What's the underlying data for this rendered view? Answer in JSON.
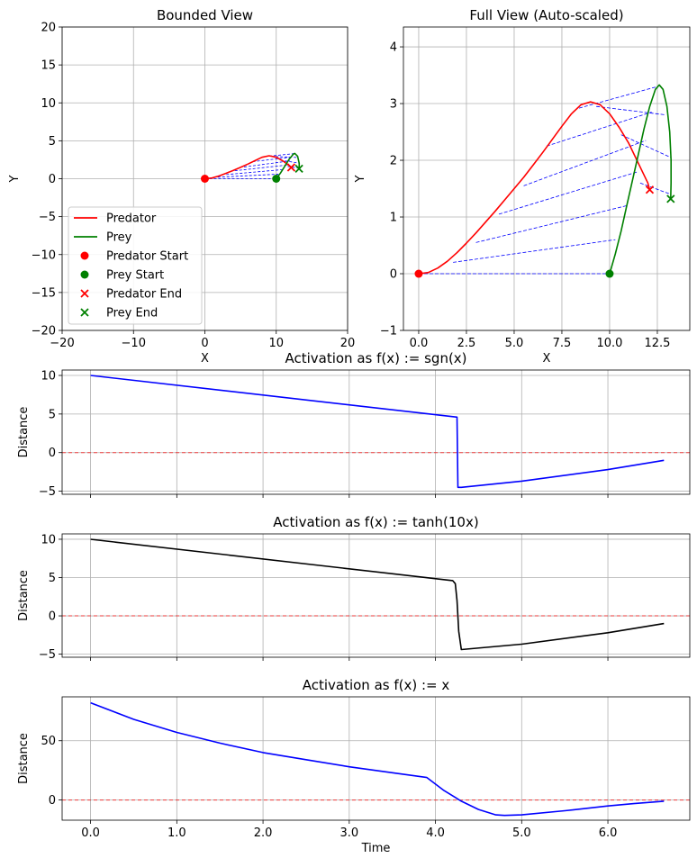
{
  "chart_data": [
    {
      "id": "bounded",
      "type": "line",
      "title": "Bounded View",
      "xlabel": "X",
      "ylabel": "Y",
      "xlim": [
        -20,
        20
      ],
      "ylim": [
        -20,
        20
      ],
      "xticks": [
        -20,
        -10,
        0,
        10,
        20
      ],
      "yticks": [
        -20,
        -15,
        -10,
        -5,
        0,
        5,
        10,
        15,
        20
      ],
      "grid": true,
      "legend_position": "lower-left",
      "legend": [
        "Predator",
        "Prey",
        "Predator Start",
        "Prey Start",
        "Predator End",
        "Prey End"
      ]
    },
    {
      "id": "full",
      "type": "line",
      "title": "Full View (Auto-scaled)",
      "xlabel": "X",
      "ylabel": "Y",
      "xlim": [
        -0.8,
        14.2
      ],
      "ylim": [
        -1,
        4.35
      ],
      "xticks": [
        0.0,
        2.5,
        5.0,
        7.5,
        10.0,
        12.5
      ],
      "xticklabels": [
        "0.0",
        "2.5",
        "5.0",
        "7.5",
        "10.0",
        "12.5"
      ],
      "yticks": [
        -1,
        0,
        1,
        2,
        3,
        4
      ],
      "grid": true,
      "series": [
        {
          "name": "Predator",
          "color": "#ff0000",
          "points": [
            [
              0,
              0
            ],
            [
              0.5,
              0.02
            ],
            [
              1,
              0.1
            ],
            [
              1.5,
              0.22
            ],
            [
              2,
              0.37
            ],
            [
              2.5,
              0.54
            ],
            [
              3,
              0.72
            ],
            [
              3.5,
              0.91
            ],
            [
              4,
              1.1
            ],
            [
              4.5,
              1.3
            ],
            [
              5,
              1.5
            ],
            [
              5.5,
              1.7
            ],
            [
              6,
              1.92
            ],
            [
              6.5,
              2.14
            ],
            [
              7,
              2.37
            ],
            [
              7.5,
              2.6
            ],
            [
              8,
              2.82
            ],
            [
              8.5,
              2.98
            ],
            [
              9,
              3.03
            ],
            [
              9.5,
              2.98
            ],
            [
              10,
              2.82
            ],
            [
              10.5,
              2.58
            ],
            [
              11,
              2.3
            ],
            [
              11.5,
              1.95
            ],
            [
              12,
              1.6
            ],
            [
              12.1,
              1.48
            ]
          ]
        },
        {
          "name": "Prey",
          "color": "#008000",
          "points": [
            [
              10,
              0
            ],
            [
              10.3,
              0.35
            ],
            [
              10.6,
              0.75
            ],
            [
              10.9,
              1.2
            ],
            [
              11.2,
              1.65
            ],
            [
              11.5,
              2.1
            ],
            [
              11.8,
              2.55
            ],
            [
              12.1,
              2.95
            ],
            [
              12.4,
              3.25
            ],
            [
              12.6,
              3.33
            ],
            [
              12.8,
              3.25
            ],
            [
              13,
              2.95
            ],
            [
              13.15,
              2.5
            ],
            [
              13.22,
              2.0
            ],
            [
              13.22,
              1.6
            ],
            [
              13.2,
              1.32
            ]
          ]
        }
      ],
      "markers": [
        {
          "name": "Predator Start",
          "x": 0,
          "y": 0,
          "color": "#ff0000",
          "marker": "o"
        },
        {
          "name": "Prey Start",
          "x": 10,
          "y": 0,
          "color": "#008000",
          "marker": "o"
        },
        {
          "name": "Predator End",
          "x": 12.1,
          "y": 1.48,
          "color": "#ff0000",
          "marker": "x"
        },
        {
          "name": "Prey End",
          "x": 13.2,
          "y": 1.32,
          "color": "#008000",
          "marker": "x"
        }
      ],
      "connections": [
        [
          [
            0,
            0
          ],
          [
            10,
            0
          ]
        ],
        [
          [
            1.8,
            0.2
          ],
          [
            10.3,
            0.6
          ]
        ],
        [
          [
            3,
            0.55
          ],
          [
            10.9,
            1.2
          ]
        ],
        [
          [
            4.2,
            1.05
          ],
          [
            11.5,
            1.8
          ]
        ],
        [
          [
            5.5,
            1.55
          ],
          [
            11.9,
            2.35
          ]
        ],
        [
          [
            6.7,
            2.25
          ],
          [
            12.2,
            2.85
          ]
        ],
        [
          [
            8.4,
            2.92
          ],
          [
            12.5,
            3.3
          ]
        ],
        [
          [
            9.3,
            2.95
          ],
          [
            12.95,
            2.8
          ]
        ],
        [
          [
            10.6,
            2.45
          ],
          [
            13.2,
            2.05
          ]
        ],
        [
          [
            11.6,
            1.6
          ],
          [
            13.2,
            1.4
          ]
        ]
      ]
    },
    {
      "id": "sgn",
      "type": "line",
      "title": "Activation as f(x) := sgn(x)",
      "ylabel": "Distance",
      "xlim": [
        -0.33,
        6.95
      ],
      "ylim": [
        -5.4,
        10.7
      ],
      "yticks": [
        -5,
        0,
        5,
        10
      ],
      "xticks": [
        0,
        1,
        2,
        3,
        4,
        5,
        6
      ],
      "show_xticklabels": false,
      "grid": true,
      "hline": 0,
      "series": [
        {
          "name": "",
          "color": "#0000ff",
          "points": [
            [
              0,
              10
            ],
            [
              4.25,
              4.6
            ],
            [
              4.26,
              -4.5
            ],
            [
              4.3,
              -4.5
            ],
            [
              5,
              -3.7
            ],
            [
              6,
              -2.2
            ],
            [
              6.65,
              -1.0
            ]
          ]
        }
      ]
    },
    {
      "id": "tanh",
      "type": "line",
      "title": "Activation as f(x) := tanh(10x)",
      "ylabel": "Distance",
      "xlim": [
        -0.33,
        6.95
      ],
      "ylim": [
        -5.4,
        10.7
      ],
      "yticks": [
        -5,
        0,
        5,
        10
      ],
      "xticks": [
        0,
        1,
        2,
        3,
        4,
        5,
        6
      ],
      "show_xticklabels": false,
      "grid": true,
      "hline": 0,
      "series": [
        {
          "name": "",
          "color": "#000000",
          "points": [
            [
              0,
              10
            ],
            [
              4.2,
              4.6
            ],
            [
              4.23,
              4.2
            ],
            [
              4.25,
              2.0
            ],
            [
              4.27,
              -2.0
            ],
            [
              4.3,
              -4.4
            ],
            [
              5,
              -3.7
            ],
            [
              6,
              -2.2
            ],
            [
              6.65,
              -1.0
            ]
          ]
        }
      ]
    },
    {
      "id": "linear",
      "type": "line",
      "title": "Activation as f(x) := x",
      "xlabel": "Time",
      "ylabel": "Distance",
      "xlim": [
        -0.33,
        6.95
      ],
      "ylim": [
        -17,
        87
      ],
      "yticks": [
        0,
        50
      ],
      "xticks": [
        0.0,
        1.0,
        2.0,
        3.0,
        4.0,
        5.0,
        6.0
      ],
      "xticklabels": [
        "0.0",
        "1.0",
        "2.0",
        "3.0",
        "4.0",
        "5.0",
        "6.0"
      ],
      "grid": true,
      "hline": 0,
      "series": [
        {
          "name": "",
          "color": "#0000ff",
          "points": [
            [
              0,
              82
            ],
            [
              0.5,
              68
            ],
            [
              1,
              57
            ],
            [
              1.5,
              48
            ],
            [
              2,
              40
            ],
            [
              2.5,
              34
            ],
            [
              3,
              28
            ],
            [
              3.5,
              23
            ],
            [
              3.9,
              19
            ],
            [
              4.1,
              8
            ],
            [
              4.3,
              -1
            ],
            [
              4.5,
              -8
            ],
            [
              4.7,
              -12.5
            ],
            [
              4.8,
              -13
            ],
            [
              5,
              -12.5
            ],
            [
              5.5,
              -9
            ],
            [
              6,
              -5
            ],
            [
              6.3,
              -3
            ],
            [
              6.65,
              -1
            ]
          ]
        }
      ]
    }
  ],
  "bounded_series": [
    {
      "name": "Predator",
      "color": "#ff0000",
      "points": [
        [
          0,
          0
        ],
        [
          1,
          0.1
        ],
        [
          2,
          0.37
        ],
        [
          3,
          0.72
        ],
        [
          4,
          1.1
        ],
        [
          5,
          1.5
        ],
        [
          6,
          1.92
        ],
        [
          7,
          2.37
        ],
        [
          8,
          2.82
        ],
        [
          9,
          3.03
        ],
        [
          10,
          2.82
        ],
        [
          11,
          2.3
        ],
        [
          12,
          1.6
        ],
        [
          12.1,
          1.48
        ]
      ]
    },
    {
      "name": "Prey",
      "color": "#008000",
      "points": [
        [
          10,
          0
        ],
        [
          10.6,
          0.75
        ],
        [
          11.2,
          1.65
        ],
        [
          11.8,
          2.55
        ],
        [
          12.4,
          3.25
        ],
        [
          12.6,
          3.33
        ],
        [
          13,
          2.95
        ],
        [
          13.22,
          2.0
        ],
        [
          13.2,
          1.32
        ]
      ]
    }
  ],
  "bounded_markers": [
    {
      "name": "Predator Start",
      "x": 0,
      "y": 0,
      "color": "#ff0000",
      "marker": "o"
    },
    {
      "name": "Prey Start",
      "x": 10,
      "y": 0,
      "color": "#008000",
      "marker": "o"
    },
    {
      "name": "Predator End",
      "x": 12.1,
      "y": 1.48,
      "color": "#ff0000",
      "marker": "x"
    },
    {
      "name": "Prey End",
      "x": 13.2,
      "y": 1.32,
      "color": "#008000",
      "marker": "x"
    }
  ],
  "colors": {
    "grid": "#b0b0b0",
    "connection": "#0000ff",
    "zero_line": "#ff0000"
  }
}
